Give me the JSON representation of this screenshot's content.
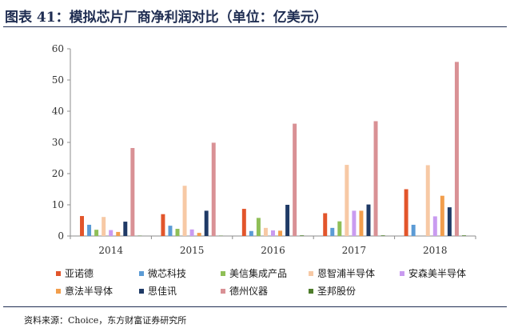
{
  "header": {
    "title": "图表 41：模拟芯片厂商净利润对比（单位：亿美元）"
  },
  "footer": {
    "source": "资料来源：Choice，东方财富证券研究所"
  },
  "chart_data": {
    "type": "bar",
    "title": "",
    "xlabel": "",
    "ylabel": "",
    "categories": [
      "2014",
      "2015",
      "2016",
      "2017",
      "2018"
    ],
    "ylim": [
      0,
      60
    ],
    "yticks": [
      0,
      10,
      20,
      30,
      40,
      50,
      60
    ],
    "grid": false,
    "legend_position": "bottom",
    "series": [
      {
        "name": "亚诺德",
        "color": "#e2552b",
        "values": [
          6.4,
          7.0,
          8.7,
          7.3,
          15.0
        ]
      },
      {
        "name": "微芯科技",
        "color": "#5b9bd5",
        "values": [
          3.6,
          3.3,
          1.6,
          2.6,
          3.6
        ]
      },
      {
        "name": "美信集成产品",
        "color": "#8fbf57",
        "values": [
          2.0,
          2.3,
          5.8,
          4.7,
          null
        ]
      },
      {
        "name": "恩智浦半导体",
        "color": "#f7c9a5",
        "values": [
          6.1,
          16.1,
          2.6,
          22.8,
          22.7
        ]
      },
      {
        "name": "安森美半导体",
        "color": "#c99bf0",
        "values": [
          1.9,
          2.1,
          1.8,
          8.1,
          6.3
        ]
      },
      {
        "name": "意法半导体",
        "color": "#f29e4c",
        "values": [
          1.3,
          1.0,
          1.7,
          8.1,
          12.9
        ]
      },
      {
        "name": "思佳讯",
        "color": "#1f3a66",
        "values": [
          4.6,
          8.1,
          10.0,
          10.1,
          9.2
        ]
      },
      {
        "name": "德州仪器",
        "color": "#d99195",
        "values": [
          28.2,
          29.9,
          36.0,
          36.8,
          55.8
        ]
      },
      {
        "name": "圣邦股份",
        "color": "#4e7d2b",
        "values": [
          0.1,
          0.1,
          0.2,
          0.2,
          0.2
        ]
      }
    ]
  }
}
